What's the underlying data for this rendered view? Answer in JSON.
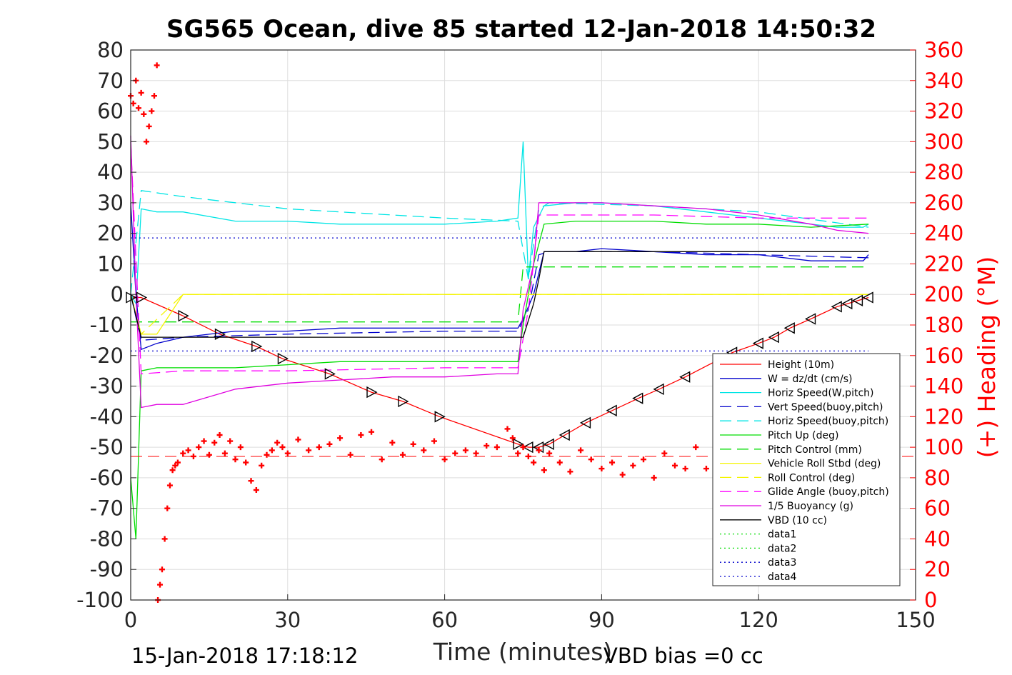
{
  "chart_data": {
    "type": "line",
    "title": "SG565 Ocean, dive 85 started 12-Jan-2018 14:50:32",
    "xlabel": "Time (minutes)",
    "ylabel_right": "(+) Heading (°M)",
    "xlim": [
      0,
      150
    ],
    "ylim_left": [
      -100,
      80
    ],
    "ylim_right": [
      0,
      360
    ],
    "x_ticks": [
      "0",
      "30",
      "60",
      "90",
      "120",
      "150"
    ],
    "y_ticks_left": [
      "80",
      "70",
      "60",
      "50",
      "40",
      "30",
      "20",
      "10",
      "0",
      "-10",
      "-20",
      "-30",
      "-40",
      "-50",
      "-60",
      "-70",
      "-80",
      "-90",
      "-100"
    ],
    "y_ticks_right": [
      "360",
      "340",
      "320",
      "300",
      "280",
      "260",
      "240",
      "220",
      "200",
      "180",
      "160",
      "140",
      "120",
      "100",
      "80",
      "60",
      "40",
      "20",
      "0"
    ],
    "grid": true,
    "legend_position": "bottom-right",
    "footer_left": "15-Jan-2018 17:18:12",
    "footer_right": "VBD bias =0 cc",
    "colors": {
      "height": "#ff0000",
      "w": "#0000cc",
      "horiz_speed": "#00e5e5",
      "pitch": "#00dd00",
      "roll": "#f5f500",
      "glide": "#ff00ff",
      "buoyancy": "#e000e0",
      "vbd": "#000000",
      "heading": "#ff0000"
    },
    "series": [
      {
        "name": "Height (10m)",
        "style": "solid",
        "color": "#ff0000",
        "x": [
          0,
          2,
          10,
          17,
          24,
          29,
          38,
          46,
          52,
          59,
          74,
          76,
          78,
          80,
          83,
          87,
          92,
          97,
          101,
          106,
          115,
          120,
          123,
          126,
          130,
          135,
          137,
          139,
          141
        ],
        "y": [
          -1,
          -1,
          -7,
          -13,
          -17,
          -21,
          -26,
          -32,
          -35,
          -40,
          -49,
          -50,
          -50,
          -49,
          -46,
          -42,
          -38,
          -34,
          -31,
          -27,
          -19,
          -16,
          -14,
          -11,
          -8,
          -4,
          -3,
          -2,
          -1
        ]
      },
      {
        "name": "W = dz/dt (cm/s)",
        "style": "solid",
        "color": "#0000cc",
        "x": [
          0,
          1,
          2,
          5,
          10,
          20,
          30,
          40,
          50,
          60,
          70,
          74,
          75,
          77,
          79,
          85,
          90,
          100,
          110,
          120,
          130,
          135,
          140,
          141
        ],
        "y": [
          30,
          0,
          -18,
          -16,
          -14,
          -12,
          -12,
          -11,
          -11,
          -11,
          -11,
          -11,
          -8,
          0,
          14,
          14,
          15,
          14,
          13,
          13,
          11,
          11,
          11,
          13
        ]
      },
      {
        "name": "Horiz Speed(W,pitch)",
        "style": "solid",
        "color": "#00e5e5",
        "x": [
          0,
          1,
          2,
          5,
          10,
          20,
          30,
          40,
          50,
          60,
          70,
          74,
          75,
          76,
          77,
          79,
          85,
          90,
          100,
          110,
          120,
          130,
          135,
          140,
          141
        ],
        "y": [
          0,
          -3,
          28,
          27,
          27,
          24,
          24,
          23,
          23,
          23,
          24,
          25,
          50,
          5,
          22,
          29,
          30,
          30,
          29,
          27,
          25,
          23,
          22,
          22,
          23
        ]
      },
      {
        "name": "Vert Speed(buoy,pitch)",
        "style": "dashed",
        "color": "#0000cc",
        "x": [
          0,
          2,
          10,
          30,
          60,
          74,
          76,
          78,
          80,
          100,
          120,
          141
        ],
        "y": [
          0,
          -15,
          -14,
          -13,
          -12,
          -12,
          -5,
          13,
          14,
          14,
          13,
          12
        ]
      },
      {
        "name": "Horiz Speed(buoy,pitch)",
        "style": "dashed",
        "color": "#00e5e5",
        "x": [
          0,
          2,
          10,
          30,
          60,
          74,
          76,
          78,
          80,
          100,
          120,
          141
        ],
        "y": [
          0,
          34,
          32,
          28,
          25,
          24,
          5,
          28,
          30,
          29,
          27,
          22
        ]
      },
      {
        "name": "Pitch Up (deg)",
        "style": "solid",
        "color": "#00dd00",
        "x": [
          0,
          1,
          2,
          5,
          10,
          20,
          30,
          40,
          50,
          60,
          70,
          74,
          75,
          77,
          79,
          85,
          90,
          100,
          110,
          120,
          130,
          141
        ],
        "y": [
          -60,
          -80,
          -25,
          -24,
          -24,
          -24,
          -23,
          -22,
          -22,
          -22,
          -22,
          -22,
          -10,
          10,
          23,
          24,
          24,
          24,
          23,
          23,
          22,
          23
        ]
      },
      {
        "name": "Pitch Control (mm)",
        "style": "dashed",
        "color": "#00dd00",
        "x": [
          0,
          2,
          10,
          30,
          60,
          74,
          75,
          77,
          79,
          100,
          141
        ],
        "y": [
          -9,
          -9,
          -9,
          -9,
          -9,
          -9,
          9,
          9,
          9,
          9,
          9
        ]
      },
      {
        "name": "Vehicle Roll Stbd (deg)",
        "style": "solid",
        "color": "#f5f500",
        "x": [
          0,
          2,
          5,
          10,
          15,
          20,
          25,
          30,
          35,
          40,
          45,
          50,
          55,
          60,
          65,
          70,
          74,
          76,
          78,
          85,
          95,
          105,
          115,
          125,
          135,
          141
        ],
        "y": [
          0,
          -13,
          -13,
          0,
          0,
          0,
          0,
          0,
          0,
          0,
          0,
          0,
          0,
          0,
          0,
          0,
          0,
          0,
          0,
          0,
          0,
          0,
          0,
          0,
          0,
          0
        ]
      },
      {
        "name": "Roll Control (deg)",
        "style": "dashed",
        "color": "#f5f500",
        "x": [
          0,
          2,
          10,
          30,
          60,
          74,
          76,
          80,
          100,
          120,
          141
        ],
        "y": [
          0,
          -13,
          0,
          0,
          0,
          0,
          0,
          0,
          0,
          0,
          0
        ]
      },
      {
        "name": "Glide Angle (buoy,pitch)",
        "style": "dashed",
        "color": "#ff00ff",
        "x": [
          0,
          2,
          10,
          30,
          60,
          74,
          76,
          78,
          80,
          100,
          120,
          141
        ],
        "y": [
          50,
          -26,
          -25,
          -25,
          -24,
          -24,
          -5,
          26,
          26,
          26,
          25,
          25
        ]
      },
      {
        "name": "1/5 Buoyancy (g)",
        "style": "solid",
        "color": "#e000e0",
        "x": [
          0,
          1,
          2,
          5,
          10,
          20,
          30,
          40,
          50,
          60,
          70,
          74,
          75,
          77,
          78,
          85,
          90,
          100,
          110,
          120,
          130,
          135,
          141
        ],
        "y": [
          52,
          0,
          -37,
          -36,
          -36,
          -31,
          -29,
          -28,
          -27,
          -27,
          -26,
          -26,
          -5,
          10,
          30,
          30,
          30,
          29,
          28,
          26,
          23,
          21,
          20
        ]
      },
      {
        "name": "VBD (10 cc)",
        "style": "solid",
        "color": "#000000",
        "x": [
          0,
          2,
          5,
          10,
          74,
          75,
          77,
          78,
          79,
          85,
          100,
          141
        ],
        "y": [
          0,
          -14,
          -14,
          -14,
          -14,
          -14,
          -3,
          5,
          14,
          14,
          14,
          14
        ]
      },
      {
        "name": "data1",
        "style": "dotted",
        "color": "#00dd00",
        "x": [],
        "y": []
      },
      {
        "name": "data2",
        "style": "dotted",
        "color": "#00dd00",
        "x": [],
        "y": []
      },
      {
        "name": "data3",
        "style": "dotted",
        "color": "#0000cc",
        "x": [
          0,
          141
        ],
        "y": [
          -18.5,
          -18.5
        ]
      },
      {
        "name": "data4",
        "style": "dotted",
        "color": "#0000cc",
        "x": [
          0,
          141
        ],
        "y": [
          18.5,
          18.5
        ]
      }
    ],
    "heading_series": {
      "axis": "right",
      "marker": "+",
      "color": "#ff0000",
      "mean_line": 94,
      "x": [
        0,
        0.5,
        1,
        1.5,
        2,
        2.5,
        3,
        3.5,
        4,
        4.5,
        5,
        5.2,
        5.6,
        6,
        6.5,
        7,
        7.5,
        8,
        8.5,
        9,
        10,
        11,
        12,
        13,
        14,
        15,
        16,
        17,
        18,
        19,
        20,
        21,
        22,
        23,
        24,
        25,
        26,
        27,
        28,
        29,
        30,
        32,
        34,
        36,
        38,
        40,
        42,
        44,
        46,
        48,
        50,
        52,
        54,
        56,
        58,
        60,
        62,
        64,
        66,
        68,
        70,
        72,
        73,
        74,
        75,
        76,
        77,
        78,
        79,
        80,
        82,
        84,
        86,
        88,
        90,
        92,
        94,
        96,
        98,
        100,
        102,
        104,
        106,
        108,
        110,
        112
      ],
      "y": [
        330,
        325,
        340,
        322,
        332,
        318,
        300,
        310,
        320,
        330,
        350,
        0,
        10,
        20,
        40,
        60,
        75,
        85,
        88,
        90,
        96,
        98,
        94,
        100,
        104,
        95,
        103,
        108,
        96,
        104,
        92,
        100,
        90,
        78,
        72,
        88,
        95,
        98,
        103,
        100,
        96,
        105,
        98,
        100,
        102,
        106,
        95,
        108,
        110,
        92,
        103,
        95,
        102,
        98,
        104,
        92,
        96,
        98,
        96,
        101,
        100,
        112,
        106,
        96,
        100,
        94,
        90,
        98,
        85,
        96,
        90,
        84,
        98,
        92,
        86,
        90,
        82,
        88,
        92,
        80,
        96,
        88,
        86,
        100,
        86,
        80
      ]
    }
  }
}
